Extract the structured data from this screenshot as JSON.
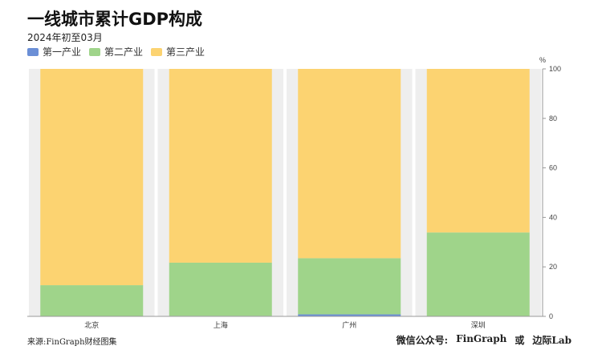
{
  "header": {
    "title": "一线城市累计GDP构成",
    "subtitle": "2024年初至03月"
  },
  "footer": {
    "source": "来源:FinGraph财经图集",
    "wechat_label": "微信公众号:",
    "brand": "FinGraph",
    "or": "或",
    "partner": "边际Lab"
  },
  "colors": {
    "primary": "#6b8fd6",
    "secondary": "#9fd48a",
    "tertiary": "#fcd371",
    "band": "#eeeeee"
  },
  "chart_data": {
    "type": "bar",
    "stacked": true,
    "categories": [
      "北京",
      "上海",
      "广州",
      "深圳"
    ],
    "series": [
      {
        "name": "第一产业",
        "values": [
          0.1,
          0.2,
          0.8,
          0.1
        ]
      },
      {
        "name": "第二产业",
        "values": [
          12.5,
          21.5,
          22.7,
          33.8
        ]
      },
      {
        "name": "第三产业",
        "values": [
          87.4,
          78.3,
          76.5,
          66.1
        ]
      }
    ],
    "y_unit": "%",
    "ylim": [
      0,
      100
    ],
    "yticks": [
      0,
      20,
      40,
      60,
      80,
      100
    ],
    "legend_position": "top-left",
    "grid": false
  }
}
